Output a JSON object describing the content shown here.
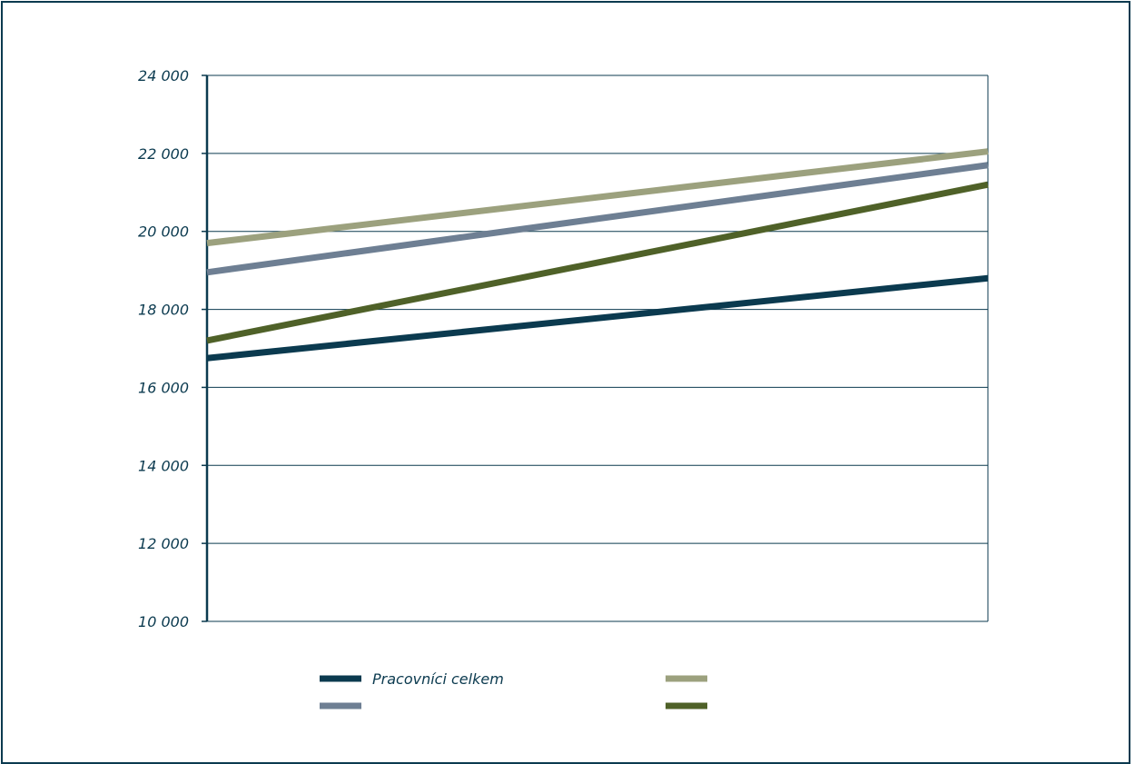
{
  "chart_data": {
    "type": "line",
    "title": "",
    "xlabel": "",
    "ylabel": "",
    "ylim": [
      10000,
      24000
    ],
    "yticks": [
      {
        "value": 24000,
        "label": "24 000"
      },
      {
        "value": 22000,
        "label": "22 000"
      },
      {
        "value": 20000,
        "label": "20 000"
      },
      {
        "value": 18000,
        "label": "18 000"
      },
      {
        "value": 16000,
        "label": "16 000"
      },
      {
        "value": 14000,
        "label": "14 000"
      },
      {
        "value": 12000,
        "label": "12 000"
      },
      {
        "value": 10000,
        "label": "10 000"
      }
    ],
    "x_points": 2,
    "grid": true,
    "legend_position": "bottom",
    "series": [
      {
        "name": "Pracovníci celkem",
        "color": "#0b3a4f",
        "values": [
          16750,
          18800
        ]
      },
      {
        "name": "",
        "color": "#9ca17e",
        "values": [
          19700,
          22050
        ]
      },
      {
        "name": "",
        "color": "#6e7f93",
        "values": [
          18950,
          21700
        ]
      },
      {
        "name": "",
        "color": "#4f6128",
        "values": [
          17200,
          21200
        ]
      }
    ]
  }
}
